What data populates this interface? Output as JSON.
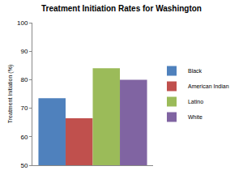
{
  "chart_data": {
    "type": "bar",
    "title": "Treatment Initiation Rates for Washington",
    "y_label": "Treatment Initiation (%)",
    "categories": [
      null
    ],
    "series": [
      {
        "name": "Black",
        "color": "#4F81BD",
        "values": [
          73.5
        ]
      },
      {
        "name": "American Indian",
        "color": "#C0504D",
        "values": [
          66.5
        ]
      },
      {
        "name": "Latino",
        "color": "#9BBB59",
        "values": [
          84
        ]
      },
      {
        "name": "White",
        "color": "#8064A2",
        "values": [
          80
        ]
      }
    ],
    "ylim": [
      50,
      100
    ],
    "yticks": [
      50,
      60,
      70,
      80,
      90,
      100
    ],
    "grid": false,
    "legend": "right"
  }
}
